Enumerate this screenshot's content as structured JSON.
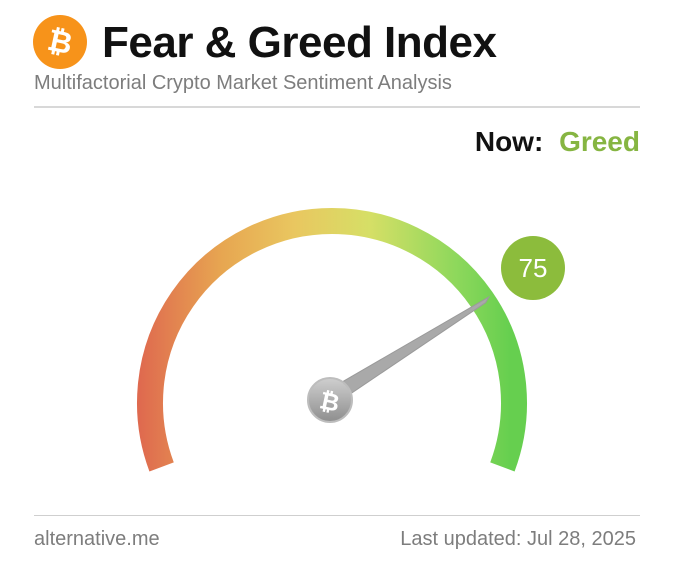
{
  "header": {
    "title": "Fear & Greed Index",
    "subtitle": "Multifactorial Crypto Market Sentiment Analysis",
    "logo_icon": "bitcoin-logo-icon"
  },
  "status": {
    "now_label": "Now:",
    "classification": "Greed",
    "classification_color": "#86b542"
  },
  "gauge": {
    "value": 75,
    "min": 0,
    "max": 100,
    "badge_color": "#8cbc3c",
    "needle_color": "#a9a9a9",
    "hub_icon": "bitcoin-hub-icon",
    "gradient_colors": [
      "#df6a4f",
      "#e7a651",
      "#e9c760",
      "#d6df66",
      "#8fd85c",
      "#66cf4f"
    ]
  },
  "footer": {
    "source": "alternative.me",
    "last_updated": "Last updated: Jul 28, 2025"
  },
  "colors": {
    "bitcoin_orange": "#f7931a",
    "muted_text": "#7d7d7d"
  }
}
